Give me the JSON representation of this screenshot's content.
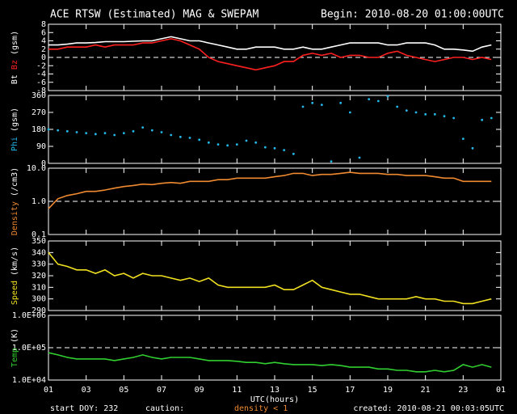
{
  "header": {
    "title": "ACE RTSW (Estimated) MAG & SWEPAM",
    "begin": "Begin: 2010-08-20 01:00:00UTC"
  },
  "footer": {
    "start": "start DOY: 232",
    "caution": "caution:",
    "caution_note": "density < 1",
    "created": "created: 2010-08-21 00:03:05UTC"
  },
  "chart_data": [
    {
      "type": "line",
      "ylabel_unit": "(gsm)",
      "ylim": [
        -8,
        8
      ],
      "yticks": [
        8,
        6,
        4,
        2,
        0,
        -2,
        -4,
        -6,
        -8
      ],
      "reference_line": 0,
      "log": false,
      "x": [
        0,
        0.5,
        1,
        1.5,
        2,
        2.5,
        3,
        3.5,
        4,
        4.5,
        5,
        5.5,
        6,
        6.5,
        7,
        7.5,
        8,
        8.5,
        9,
        9.5,
        10,
        10.5,
        11,
        11.5,
        12,
        12.5,
        13,
        13.5,
        14,
        14.5,
        15,
        15.5,
        16,
        16.5,
        17,
        17.5,
        18,
        18.5,
        19,
        19.5,
        20,
        20.5,
        21,
        21.5,
        22,
        22.5,
        23,
        23.5
      ],
      "xlim": [
        0,
        24
      ],
      "series": [
        {
          "name": "Bt",
          "color": "#ffffff",
          "values": [
            3,
            3,
            3.2,
            3.5,
            3.5,
            3.6,
            3.8,
            3.8,
            3.8,
            3.9,
            4,
            4,
            4.5,
            5,
            4.5,
            4,
            4,
            3.5,
            3,
            2.5,
            2,
            2,
            2.5,
            2.5,
            2.5,
            2,
            2,
            2.5,
            2,
            2,
            2.5,
            3,
            3.5,
            3.5,
            3.5,
            3.5,
            3,
            3,
            3.5,
            3.5,
            3.5,
            3,
            2,
            2,
            1.8,
            1.5,
            2.5,
            3
          ]
        },
        {
          "name": "Bz",
          "color": "#ff2020",
          "values": [
            2,
            2,
            2.5,
            2.5,
            2.5,
            3,
            2.5,
            3,
            3,
            3,
            3.5,
            3.5,
            4,
            4.5,
            4,
            3,
            2,
            0,
            -1,
            -1.5,
            -2,
            -2.5,
            -3,
            -2.5,
            -2,
            -1,
            -1,
            0.5,
            1,
            0.5,
            1,
            0,
            0.5,
            0.5,
            0,
            0,
            1,
            1.5,
            0.5,
            0,
            -0.5,
            -1,
            -0.5,
            0,
            0,
            -0.5,
            0,
            -0.5
          ]
        }
      ]
    },
    {
      "type": "scatter",
      "ylabel_unit": "(gsm)",
      "ylim": [
        0,
        360
      ],
      "yticks": [
        360,
        270,
        180,
        90,
        0
      ],
      "log": false,
      "x": [
        0,
        0.5,
        1,
        1.5,
        2,
        2.5,
        3,
        3.5,
        4,
        4.5,
        5,
        5.5,
        6,
        6.5,
        7,
        7.5,
        8,
        8.5,
        9,
        9.5,
        10,
        10.5,
        11,
        11.5,
        12,
        12.5,
        13,
        13.5,
        14,
        14.5,
        15,
        15.5,
        16,
        16.5,
        17,
        17.5,
        18,
        18.5,
        19,
        19.5,
        20,
        20.5,
        21,
        21.5,
        22,
        22.5,
        23,
        23.5
      ],
      "xlim": [
        0,
        24
      ],
      "series": [
        {
          "name": "Phi",
          "color": "#22b8e8",
          "values": [
            180,
            175,
            170,
            165,
            160,
            155,
            160,
            150,
            160,
            170,
            190,
            175,
            165,
            150,
            140,
            135,
            125,
            110,
            100,
            95,
            100,
            120,
            110,
            85,
            80,
            70,
            50,
            300,
            320,
            310,
            10,
            320,
            270,
            30,
            340,
            330,
            355,
            300,
            280,
            270,
            260,
            260,
            250,
            240,
            130,
            80,
            230,
            240
          ]
        }
      ]
    },
    {
      "type": "line",
      "ylabel_unit": "(/cm3)",
      "ylim": [
        0.1,
        10
      ],
      "yticks": [
        {
          "value": 10,
          "label": "10.0"
        },
        {
          "value": 1,
          "label": "1.0"
        },
        0.1
      ],
      "reference_line": 1,
      "log": true,
      "x": [
        0,
        0.5,
        1,
        1.5,
        2,
        2.5,
        3,
        3.5,
        4,
        4.5,
        5,
        5.5,
        6,
        6.5,
        7,
        7.5,
        8,
        8.5,
        9,
        9.5,
        10,
        10.5,
        11,
        11.5,
        12,
        12.5,
        13,
        13.5,
        14,
        14.5,
        15,
        15.5,
        16,
        16.5,
        17,
        17.5,
        18,
        18.5,
        19,
        19.5,
        20,
        20.5,
        21,
        21.5,
        22,
        22.5,
        23,
        23.5
      ],
      "xlim": [
        0,
        24
      ],
      "series": [
        {
          "name": "Density",
          "color": "#f08a30",
          "values": [
            0.6,
            1.2,
            1.5,
            1.7,
            2,
            2,
            2.2,
            2.5,
            2.8,
            3,
            3.3,
            3.2,
            3.5,
            3.7,
            3.5,
            4,
            4,
            4,
            4.5,
            4.5,
            5,
            5,
            5,
            5,
            5.5,
            6,
            7,
            7,
            6,
            6.5,
            6.5,
            7,
            7.5,
            7,
            7,
            7,
            6.5,
            6.5,
            6,
            6,
            6,
            5.5,
            5,
            5,
            4,
            4,
            4,
            4
          ]
        }
      ]
    },
    {
      "type": "line",
      "ylabel_unit": "(km/s)",
      "ylim": [
        290,
        350
      ],
      "yticks": [
        350,
        340,
        330,
        320,
        310,
        300,
        290
      ],
      "log": false,
      "x": [
        0,
        0.5,
        1,
        1.5,
        2,
        2.5,
        3,
        3.5,
        4,
        4.5,
        5,
        5.5,
        6,
        6.5,
        7,
        7.5,
        8,
        8.5,
        9,
        9.5,
        10,
        10.5,
        11,
        11.5,
        12,
        12.5,
        13,
        13.5,
        14,
        14.5,
        15,
        15.5,
        16,
        16.5,
        17,
        17.5,
        18,
        18.5,
        19,
        19.5,
        20,
        20.5,
        21,
        21.5,
        22,
        22.5,
        23,
        23.5
      ],
      "xlim": [
        0,
        24
      ],
      "series": [
        {
          "name": "Speed",
          "color": "#f0e020",
          "values": [
            340,
            330,
            328,
            325,
            325,
            322,
            325,
            320,
            322,
            318,
            322,
            320,
            320,
            318,
            316,
            318,
            315,
            318,
            312,
            310,
            310,
            310,
            310,
            310,
            312,
            308,
            308,
            312,
            316,
            310,
            308,
            306,
            304,
            304,
            302,
            300,
            300,
            300,
            300,
            302,
            300,
            300,
            298,
            298,
            296,
            296,
            298,
            300
          ]
        }
      ]
    },
    {
      "type": "line",
      "ylabel_unit": "(K)",
      "ylim": [
        10000,
        1000000
      ],
      "yticks": [
        {
          "value": 1000000,
          "label": "1.0E+06"
        },
        {
          "value": 100000,
          "label": "1.0E+05"
        },
        {
          "value": 10000,
          "label": "1.0E+04"
        }
      ],
      "reference_line": 100000,
      "log": true,
      "x": [
        0,
        0.5,
        1,
        1.5,
        2,
        2.5,
        3,
        3.5,
        4,
        4.5,
        5,
        5.5,
        6,
        6.5,
        7,
        7.5,
        8,
        8.5,
        9,
        9.5,
        10,
        10.5,
        11,
        11.5,
        12,
        12.5,
        13,
        13.5,
        14,
        14.5,
        15,
        15.5,
        16,
        16.5,
        17,
        17.5,
        18,
        18.5,
        19,
        19.5,
        20,
        20.5,
        21,
        21.5,
        22,
        22.5,
        23,
        23.5
      ],
      "xlim": [
        0,
        24
      ],
      "xlabel": "UTC(hours)",
      "xticks": [
        {
          "value": 0,
          "label": "01"
        },
        {
          "value": 2,
          "label": "03"
        },
        {
          "value": 4,
          "label": "05"
        },
        {
          "value": 6,
          "label": "07"
        },
        {
          "value": 8,
          "label": "09"
        },
        {
          "value": 10,
          "label": "11"
        },
        {
          "value": 12,
          "label": "13"
        },
        {
          "value": 14,
          "label": "15"
        },
        {
          "value": 16,
          "label": "17"
        },
        {
          "value": 18,
          "label": "19"
        },
        {
          "value": 20,
          "label": "21"
        },
        {
          "value": 22,
          "label": "23"
        },
        {
          "value": 24,
          "label": "01"
        }
      ],
      "series": [
        {
          "name": "Temp",
          "color": "#30d030",
          "values": [
            70000,
            60000,
            50000,
            45000,
            45000,
            45000,
            45000,
            40000,
            45000,
            50000,
            60000,
            50000,
            45000,
            50000,
            50000,
            50000,
            45000,
            40000,
            40000,
            40000,
            38000,
            35000,
            35000,
            32000,
            35000,
            32000,
            30000,
            30000,
            30000,
            28000,
            30000,
            28000,
            25000,
            25000,
            25000,
            22000,
            22000,
            20000,
            20000,
            18000,
            18000,
            20000,
            18000,
            20000,
            30000,
            25000,
            30000,
            25000
          ]
        }
      ]
    }
  ]
}
